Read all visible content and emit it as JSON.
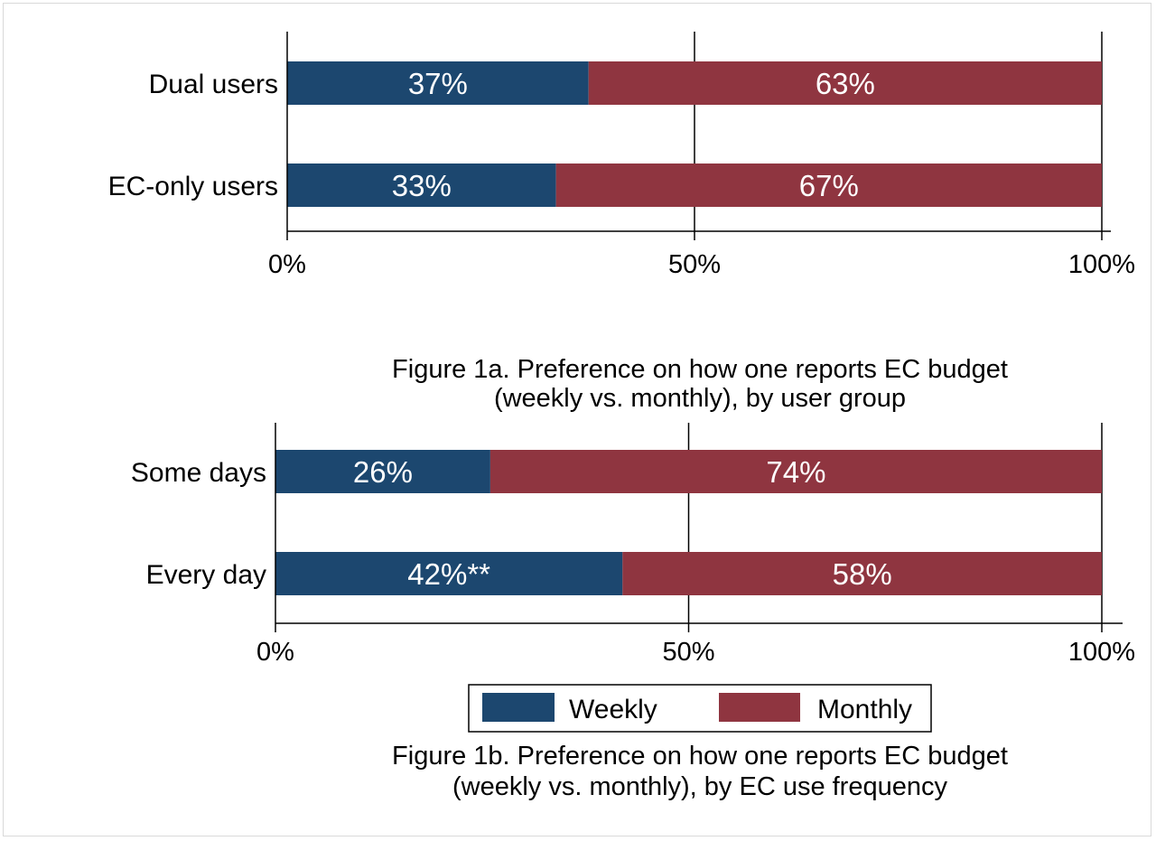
{
  "colors": {
    "weekly": "#1c476f",
    "monthly": "#8f3540"
  },
  "chart_data": [
    {
      "type": "bar",
      "orientation": "horizontal",
      "stacked": true,
      "categories": [
        "Dual users",
        "EC-only users"
      ],
      "series": [
        {
          "name": "Weekly",
          "values": [
            37,
            33
          ],
          "labels": [
            "37%",
            "33%"
          ]
        },
        {
          "name": "Monthly",
          "values": [
            63,
            67
          ],
          "labels": [
            "63%",
            "67%"
          ]
        }
      ],
      "xlim": [
        0,
        100
      ],
      "x_ticks": [
        0,
        50,
        100
      ],
      "x_tick_labels": [
        "0%",
        "50%",
        "100%"
      ],
      "grid": "vertical at 50% and 100%",
      "caption_lines": [
        "Figure 1a. Preference on how one reports EC budget",
        "(weekly vs. monthly), by user group"
      ]
    },
    {
      "type": "bar",
      "orientation": "horizontal",
      "stacked": true,
      "categories": [
        "Some days",
        "Every day"
      ],
      "series": [
        {
          "name": "Weekly",
          "values": [
            26,
            42
          ],
          "labels": [
            "26%",
            "42%**"
          ]
        },
        {
          "name": "Monthly",
          "values": [
            74,
            58
          ],
          "labels": [
            "74%",
            "58%"
          ]
        }
      ],
      "xlim": [
        0,
        100
      ],
      "x_ticks": [
        0,
        50,
        100
      ],
      "x_tick_labels": [
        "0%",
        "50%",
        "100%"
      ],
      "grid": "vertical at 50% and 100%",
      "legend": {
        "position": "bottom",
        "entries": [
          "Weekly",
          "Monthly"
        ]
      },
      "caption_lines": [
        "Figure 1b. Preference on how one reports EC budget",
        "(weekly vs. monthly), by EC use frequency"
      ]
    }
  ]
}
